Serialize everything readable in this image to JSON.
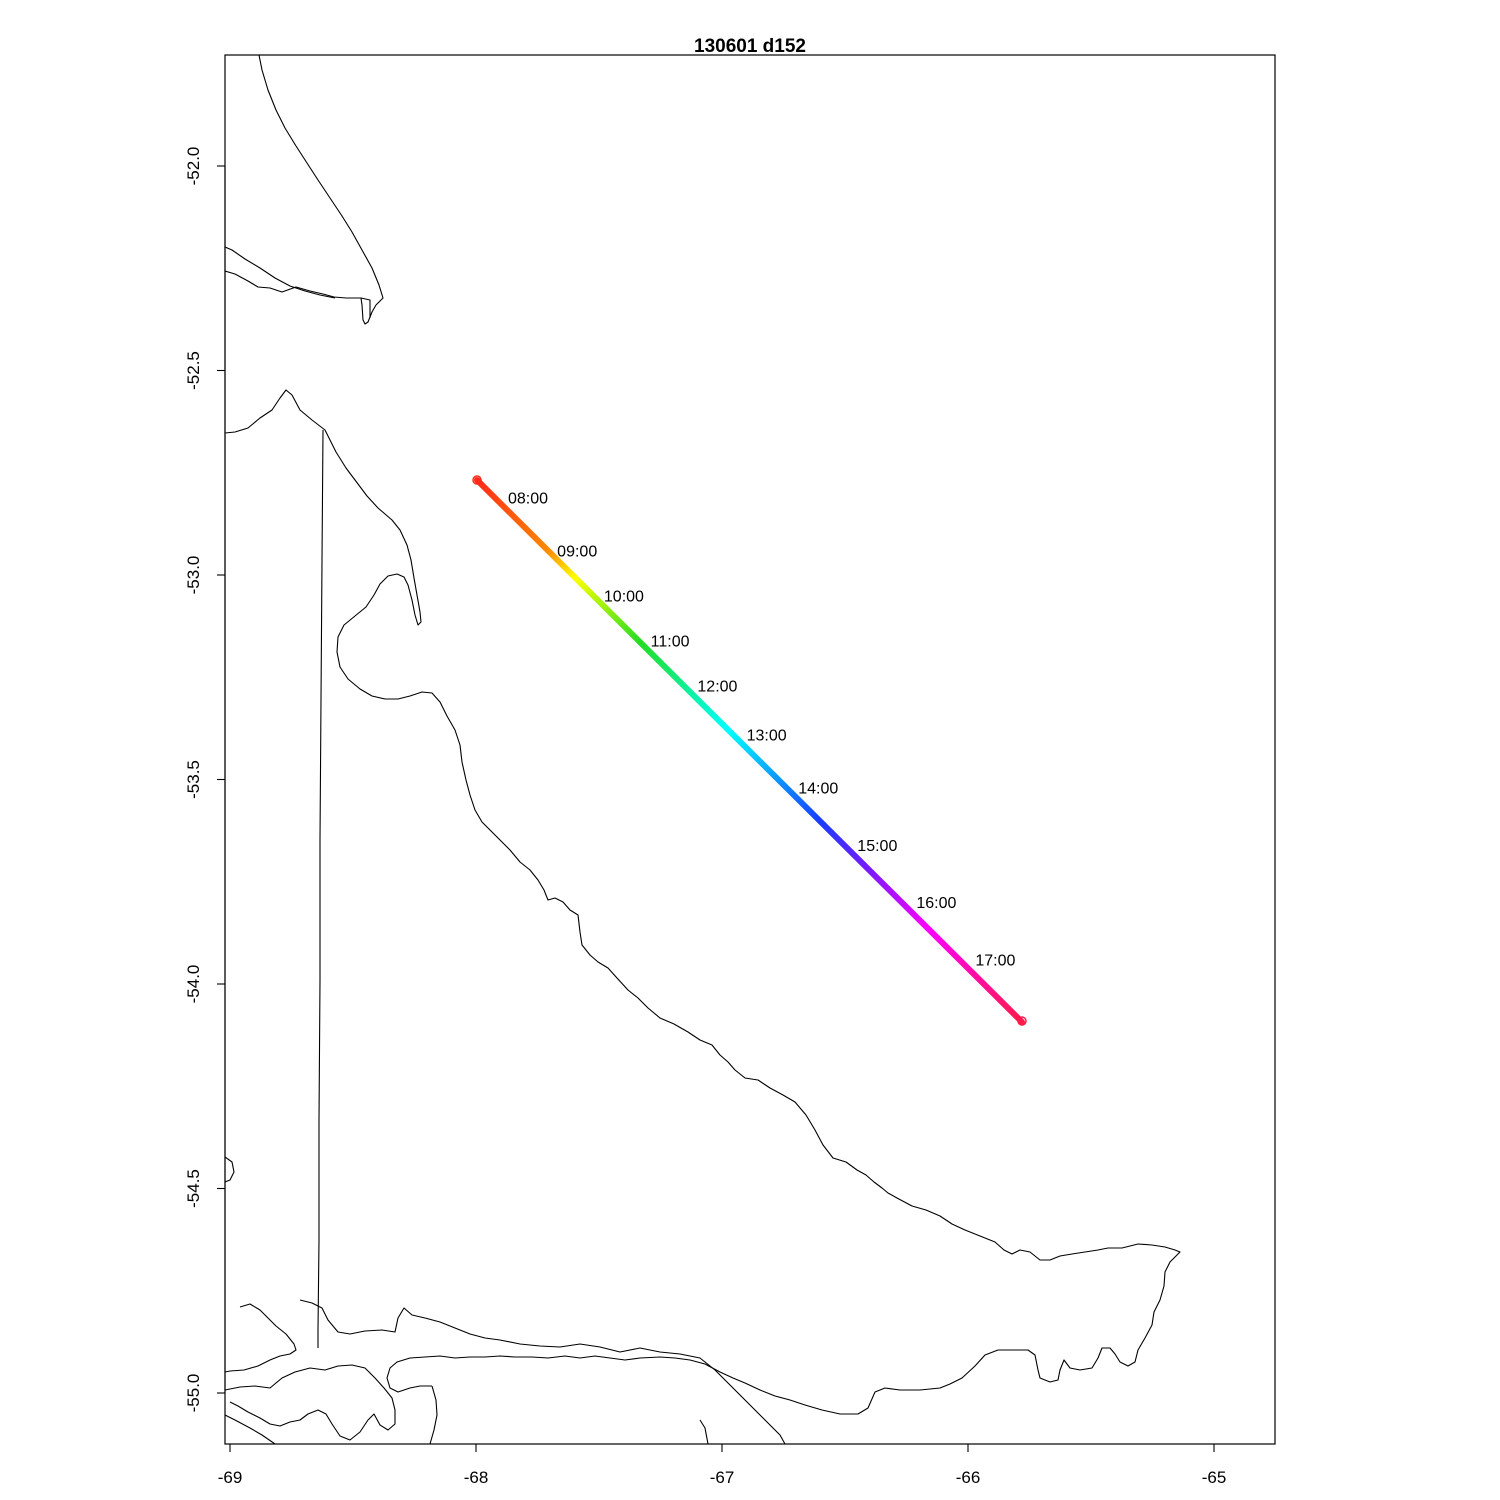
{
  "map": {
    "title": "130601   d152",
    "x_tick_labels": [
      "-69",
      "-68",
      "-67",
      "-66",
      "-65"
    ],
    "y_tick_labels": [
      "-52.0",
      "-52.5",
      "-53.0",
      "-53.5",
      "-54.0",
      "-54.5",
      "-55.0"
    ]
  },
  "chart_data": {
    "type": "line",
    "title": "130601   d152",
    "xlim": [
      -69.02,
      -64.75
    ],
    "ylim": [
      -55.1,
      -51.73
    ],
    "x_ticks": [
      -69,
      -68,
      -67,
      -66,
      -65
    ],
    "y_ticks": [
      -52.0,
      -52.5,
      -53.0,
      -53.5,
      -54.0,
      -54.5,
      -55.0
    ],
    "grid": false,
    "track": {
      "start": [
        -68.0,
        -52.76
      ],
      "end": [
        -65.78,
        -54.09
      ],
      "color_scale": "rainbow (red → yellow → green → cyan → blue → magenta → red)"
    },
    "time_labels": [
      {
        "label": "08:00",
        "lon": -67.87,
        "lat": -52.81
      },
      {
        "label": "09:00",
        "lon": -67.67,
        "lat": -52.94
      },
      {
        "label": "10:00",
        "lon": -67.48,
        "lat": -53.05
      },
      {
        "label": "11:00",
        "lon": -67.29,
        "lat": -53.16
      },
      {
        "label": "12:00",
        "lon": -67.1,
        "lat": -53.27
      },
      {
        "label": "13:00",
        "lon": -66.9,
        "lat": -53.39
      },
      {
        "label": "14:00",
        "lon": -66.69,
        "lat": -53.52
      },
      {
        "label": "15:00",
        "lon": -66.45,
        "lat": -53.66
      },
      {
        "label": "16:00",
        "lon": -66.21,
        "lat": -53.8
      },
      {
        "label": "17:00",
        "lon": -65.97,
        "lat": -53.94
      }
    ]
  },
  "colors": {
    "coastline": "#000000",
    "track_gradient": [
      "#ff2a1a",
      "#ff8a00",
      "#ffff00",
      "#22dd22",
      "#00ffff",
      "#1a3cff",
      "#7a1aff",
      "#ff00ff",
      "#ff1a4a"
    ]
  }
}
